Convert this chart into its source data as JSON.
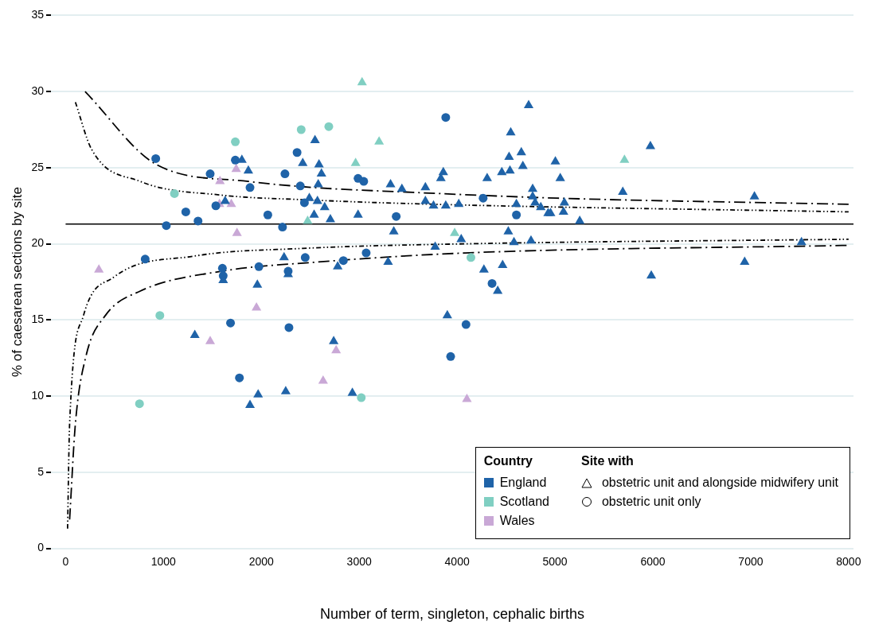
{
  "chart_data": {
    "type": "scatter",
    "xlabel": "Number of term, singleton, cephalic births",
    "ylabel": "% of caesarean sections by site",
    "xlim": [
      -150,
      8050
    ],
    "ylim": [
      0,
      35
    ],
    "xticks": [
      0,
      1000,
      2000,
      3000,
      4000,
      5000,
      6000,
      7000,
      8000
    ],
    "yticks": [
      0,
      5,
      10,
      15,
      20,
      25,
      30,
      35
    ],
    "grid": "y",
    "legend": "bottom right",
    "legend_title": "Country",
    "annotations": [
      "Site with",
      "obstetric unit and alongside midwifery unit",
      "obstetric unit only"
    ],
    "ref_lines": [
      {
        "axis": "y",
        "value": 21.3,
        "color": "#000000",
        "line_style": "solid"
      }
    ],
    "series": [
      {
        "name": "England",
        "color": "#1f63a8",
        "marker": "triangle",
        "x": [
          1320,
          1867,
          1801,
          1630,
          2232,
          2274,
          1610,
          1959,
          1967,
          1884,
          2249,
          2548,
          2423,
          2589,
          2614,
          2581,
          2490,
          2573,
          2647,
          2539,
          2705,
          2780,
          2739,
          2930,
          2988,
          3320,
          3436,
          3353,
          3295,
          3676,
          3676,
          3759,
          3884,
          4017,
          3859,
          3834,
          3776,
          4042,
          3900,
          4307,
          4274,
          4415,
          4465,
          4548,
          4531,
          4656,
          4672,
          4457,
          4540,
          4523,
          4581,
          4755,
          4731,
          4772,
          4772,
          4606,
          4797,
          4855,
          4930,
          5004,
          5054,
          5096,
          4955,
          5087,
          5253,
          5975,
          5693,
          5984,
          6938,
          7038,
          7519
        ],
        "values": [
          14.0,
          24.8,
          25.5,
          22.8,
          19.1,
          18.0,
          17.6,
          17.3,
          10.1,
          9.4,
          10.3,
          26.8,
          25.3,
          25.2,
          24.6,
          23.9,
          23.0,
          22.8,
          22.4,
          21.9,
          21.6,
          18.5,
          13.6,
          10.2,
          21.9,
          23.9,
          23.6,
          20.8,
          18.8,
          23.7,
          22.8,
          22.5,
          22.5,
          22.6,
          24.7,
          24.3,
          19.8,
          20.3,
          15.3,
          24.3,
          18.3,
          16.9,
          18.6,
          27.3,
          25.7,
          26.0,
          25.1,
          24.7,
          24.8,
          20.8,
          20.1,
          20.2,
          29.1,
          23.6,
          23.1,
          22.6,
          22.7,
          22.4,
          22.0,
          25.4,
          24.3,
          22.7,
          22.0,
          22.1,
          21.5,
          26.4,
          23.4,
          17.9,
          18.8,
          23.1,
          20.1
        ]
      },
      {
        "color": "#1f63a8",
        "marker": "circle",
        "x": [
          921,
          1477,
          1734,
          1884,
          2241,
          2365,
          2398,
          2440,
          1228,
          1535,
          1353,
          1029,
          2066,
          2216,
          813,
          1602,
          1610,
          1975,
          2274,
          2448,
          1685,
          2282,
          1776,
          2988,
          3046,
          3378,
          2838,
          3071,
          3884,
          4266,
          4606,
          4357,
          4091,
          3934
        ],
        "values": [
          25.6,
          24.6,
          25.5,
          23.7,
          24.6,
          26.0,
          23.8,
          22.7,
          22.1,
          22.5,
          21.5,
          21.2,
          21.9,
          21.1,
          19.0,
          18.4,
          17.9,
          18.5,
          18.2,
          19.1,
          14.8,
          14.5,
          11.2,
          24.3,
          24.1,
          21.8,
          18.9,
          19.4,
          28.3,
          23.0,
          21.9,
          17.4,
          14.7,
          12.6
        ]
      },
      {
        "name": "Scotland",
        "color": "#80cfc2",
        "marker": "triangle",
        "x": [
          3029,
          3203,
          2963,
          2473,
          3975,
          5710
        ],
        "values": [
          30.6,
          26.7,
          25.3,
          21.5,
          20.7,
          25.5
        ]
      },
      {
        "color": "#80cfc2",
        "marker": "circle",
        "x": [
          1734,
          2407,
          1112,
          963,
          755,
          2689,
          4141,
          3021
        ],
        "values": [
          26.7,
          27.5,
          23.3,
          15.3,
          9.5,
          27.7,
          19.1,
          9.9
        ]
      },
      {
        "name": "Wales",
        "color": "#c9a8d6",
        "marker": "triangle",
        "x": [
          340,
          1743,
          1577,
          1572,
          1693,
          1751,
          1950,
          1477,
          2764,
          2631,
          4100
        ],
        "values": [
          18.3,
          24.9,
          24.1,
          22.6,
          22.6,
          20.7,
          15.8,
          13.6,
          13.0,
          11.0,
          9.8
        ]
      },
      {
        "type": "line",
        "color": "#000000",
        "line_style": "dashed",
        "marker": "none",
        "x": [
          199,
          930,
          1867,
          2531,
          3477,
          5020,
          8000
        ],
        "values": [
          30.0,
          25.2,
          24.1,
          23.7,
          23.4,
          23.0,
          22.6
        ]
      },
      {
        "type": "line",
        "color": "#000000",
        "line_style": "dotted",
        "marker": "none",
        "x": [
          100,
          266,
          763,
          1593,
          2423,
          3751,
          8000
        ],
        "values": [
          29.3,
          26.2,
          24.1,
          23.2,
          22.9,
          22.6,
          22.1
        ]
      },
      {
        "type": "line",
        "color": "#000000",
        "line_style": "dotted",
        "marker": "none",
        "x": [
          20,
          41,
          183,
          490,
          1320,
          2423,
          4083,
          8000
        ],
        "values": [
          1.3,
          8.2,
          15.3,
          17.8,
          19.2,
          19.7,
          20.0,
          20.3
        ]
      },
      {
        "type": "line",
        "color": "#000000",
        "line_style": "dashed",
        "marker": "none",
        "x": [
          41,
          100,
          207,
          407,
          763,
          1593,
          2564,
          4083,
          8000
        ],
        "values": [
          1.9,
          8.2,
          12.6,
          15.3,
          16.9,
          18.2,
          18.8,
          19.4,
          19.9
        ]
      }
    ]
  }
}
